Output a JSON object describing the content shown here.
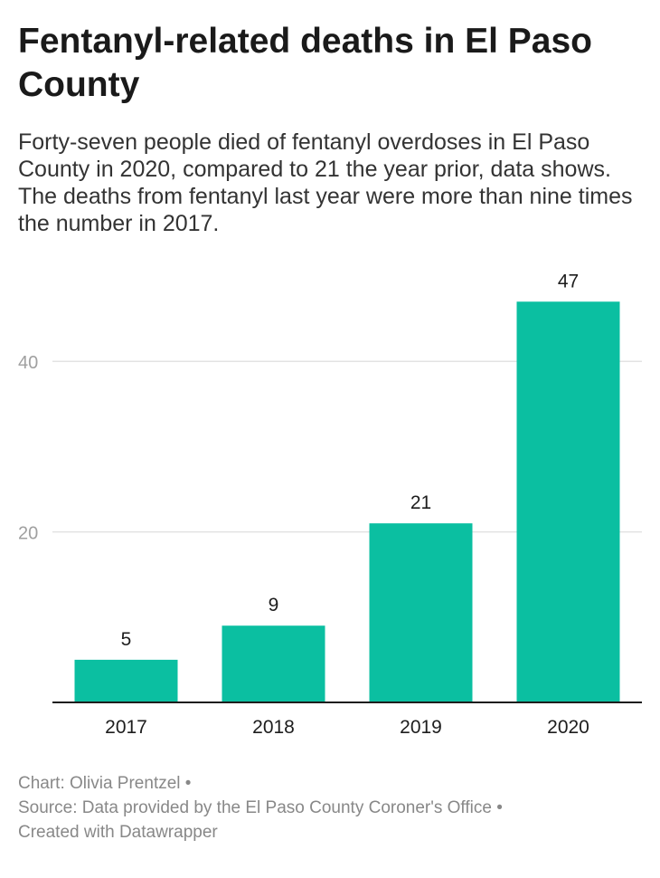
{
  "header": {
    "title": "Fentanyl-related deaths in El Paso County",
    "subtitle": "Forty-seven people died of fentanyl overdoses in El Paso County in 2020, compared to 21 the year prior, data shows. The deaths from fentanyl last year were more than nine times the number in 2017."
  },
  "footer": {
    "chart_credit": "Chart: Olivia Prentzel",
    "source": "Source: Data provided by the El Paso County Coroner's Office",
    "created_with": "Created with Datawrapper",
    "separator": "•"
  },
  "chart_data": {
    "type": "bar",
    "categories": [
      "2017",
      "2018",
      "2019",
      "2020"
    ],
    "values": [
      5,
      9,
      21,
      47
    ],
    "yticks": [
      20,
      40
    ],
    "ylim": [
      0,
      50
    ],
    "grid": true,
    "bar_color": "#0bbfa1",
    "data_labels": true
  }
}
